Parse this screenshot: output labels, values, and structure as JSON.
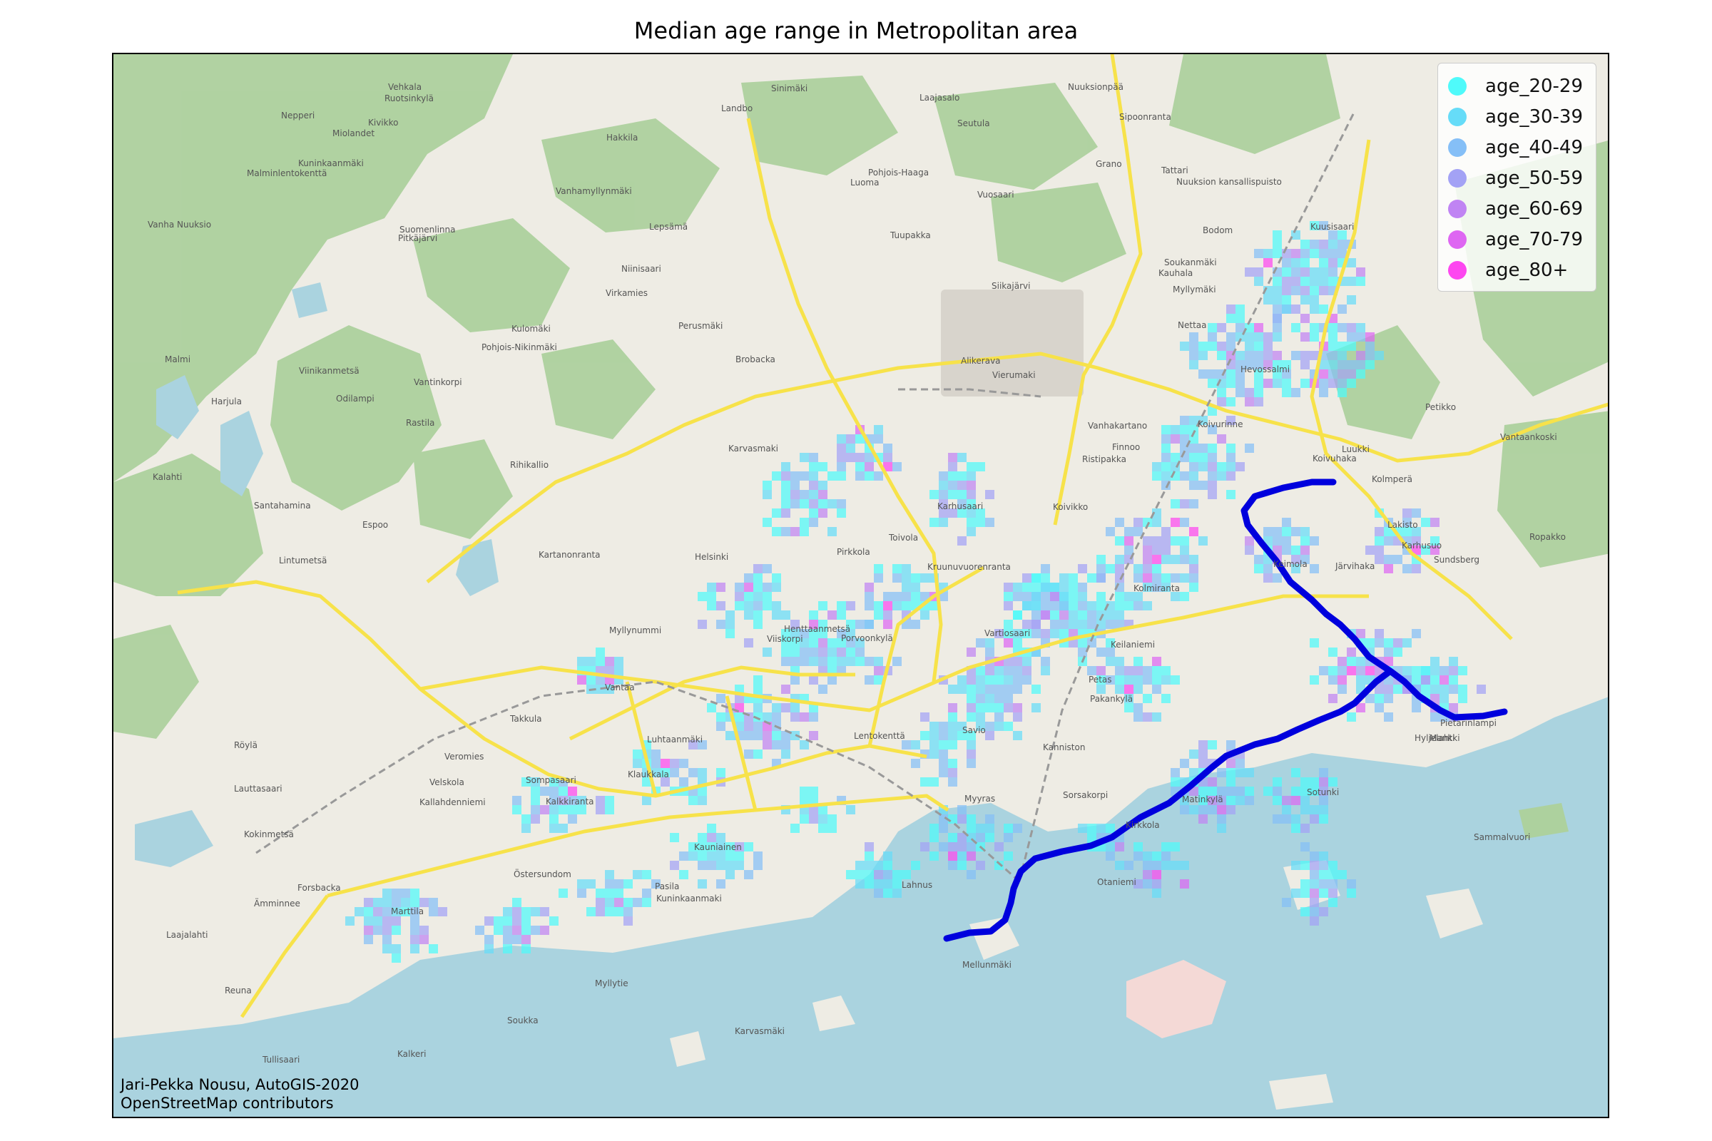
{
  "title": "Median age range in Metropolitan area",
  "legend": [
    {
      "label": "age_20-29",
      "color": "#4ffafa"
    },
    {
      "label": "age_30-39",
      "color": "#66dcf8"
    },
    {
      "label": "age_40-49",
      "color": "#85bff7"
    },
    {
      "label": "age_50-59",
      "color": "#a3a2f5"
    },
    {
      "label": "age_60-69",
      "color": "#c084f3"
    },
    {
      "label": "age_70-79",
      "color": "#de66f2"
    },
    {
      "label": "age_80+",
      "color": "#fd47f0"
    }
  ],
  "credits": {
    "author": "Jari-Pekka Nousu, AutoGIS-2020",
    "basemap": "OpenStreetMap contributors"
  },
  "route_color": "#0000dd",
  "road_color": "#f7e24a",
  "sea_color": "#aad3df",
  "forest_color": "#add19e",
  "place_labels": [
    "Klaukkala",
    "Järvihaka",
    "Lepsämä",
    "Kalkeri",
    "Lintumetsä",
    "Ropakko",
    "Reuna",
    "Kanniston",
    "Sorsakorpi",
    "Savio",
    "Alikerava",
    "Myllynummi",
    "Koivikko",
    "Pietarinlampi",
    "Ristipakka",
    "Toivola",
    "Harjula",
    "Vanhamyllynmäki",
    "Ruotsinkylä",
    "Rihikallio",
    "Pohjois-Nikinmäki",
    "Lakisto",
    "Luhtaanmäki",
    "Seutula",
    "Vierumaki",
    "Kulomäki",
    "Keimola",
    "Lahnus",
    "Takkula",
    "Luukki",
    "Nuuksion kansallispuisto",
    "Nuuksionpää",
    "Velskola",
    "Röylä",
    "Nettaa",
    "Viinikanmetsä",
    "Lentokenttä",
    "Myyras",
    "Vantaa",
    "Kuninkaanmäki",
    "Odilampi",
    "Petas",
    "Myllymäki",
    "Vantaankoski",
    "Tuupakka",
    "Virkamies",
    "Veromies",
    "Koivuhaka",
    "Hakkila",
    "Sotunki",
    "Perusmäki",
    "Koivurinne",
    "Vehkala",
    "Pakankylä",
    "Pitkäjärvi",
    "Bodom",
    "Viiskorpi",
    "Petikko",
    "Kuninkaanmaki",
    "Landbo",
    "Porvoonkylä",
    "Siikajärvi",
    "Kolmiranta",
    "Vanhakartano",
    "Nepperi",
    "Malminlentokenttä",
    "Tattari",
    "Östersundom",
    "Sipoonranta",
    "Kolmperä",
    "Vanha Nuuksio",
    "Brobacka",
    "Karhusuo",
    "Espoo",
    "Karvasmäki",
    "Kirkkola",
    "Kauniainen",
    "Sinimäki",
    "Pirkkola",
    "Marttila",
    "Pohjois-Haaga",
    "Kalahti",
    "Malmi",
    "Kivikko",
    "Mellunmäki",
    "Niinisaari",
    "Helsinki",
    "Pasila",
    "Laajasalo",
    "Vartiosaari",
    "Santahamina",
    "Suomenlinna",
    "Kalkkiranta",
    "Matinkylä",
    "Sammalvuori",
    "Soukka",
    "Soukanmäki",
    "Sundsberg",
    "Kartanonranta",
    "Ämminnee",
    "Laajalahti",
    "Otaniemi",
    "Kuusisaari",
    "Lauttasaari",
    "Keilaniemi",
    "Finnoo",
    "Hyljelahti",
    "Karhusaari",
    "Henttaanmetsä",
    "Kokinmetsä",
    "Mankki",
    "Luoma",
    "Vantinkorpi",
    "Myllytie",
    "Forsbacka",
    "Kauhala",
    "Karvasmaki",
    "Miolandet",
    "Grano",
    "Kallahdenniemi",
    "Sompasaari",
    "Kruunuvuorenranta",
    "Hevossalmi",
    "Tullisaari",
    "Vuosaari",
    "Rastila"
  ]
}
